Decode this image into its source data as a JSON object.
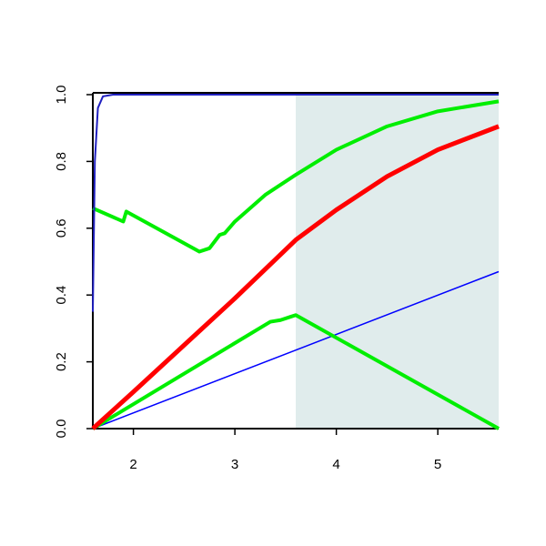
{
  "chart_data": {
    "type": "line",
    "xlim": [
      1.6,
      5.6
    ],
    "ylim": [
      0,
      1
    ],
    "xticks": [
      2,
      3,
      4,
      5
    ],
    "yticks": [
      {
        "value": 0,
        "label": "0.0"
      },
      0.2,
      0.4,
      0.6,
      0.8,
      {
        "value": 1,
        "label": "1.0"
      }
    ],
    "shaded_range": [
      3.6,
      5.6
    ],
    "shade_color": "#e0ecec",
    "series": [
      {
        "color": "#0000ff",
        "width": 1.5,
        "x": [
          1.6,
          5.6
        ],
        "values": [
          0,
          0.47
        ]
      },
      {
        "color": "#00ee00",
        "width": 4,
        "x": [
          1.6,
          3.35,
          3.45,
          3.55,
          3.6,
          5.6
        ],
        "values": [
          0.0,
          0.32,
          0.325,
          0.335,
          0.34,
          0.0
        ]
      },
      {
        "color": "#ff0000",
        "width": 5,
        "x": [
          1.6,
          2.0,
          2.5,
          3.0,
          3.6,
          4.0,
          4.5,
          5.0,
          5.6
        ],
        "values": [
          0.0,
          0.11,
          0.25,
          0.39,
          0.565,
          0.655,
          0.755,
          0.835,
          0.905
        ]
      },
      {
        "color": "#00ee00",
        "width": 4,
        "x": [
          1.6,
          1.9,
          1.93,
          2.65,
          2.75,
          2.85,
          2.9,
          3.0,
          3.3,
          3.6,
          4.0,
          4.5,
          5.0,
          5.6
        ],
        "values": [
          0.66,
          0.62,
          0.65,
          0.53,
          0.54,
          0.58,
          0.585,
          0.62,
          0.7,
          0.76,
          0.835,
          0.905,
          0.95,
          0.98
        ]
      },
      {
        "color": "#2020c0",
        "width": 2,
        "x": [
          1.6,
          1.62,
          1.65,
          1.7,
          1.8,
          5.6
        ],
        "values": [
          0.35,
          0.8,
          0.96,
          0.995,
          1.0,
          1.0
        ]
      }
    ]
  }
}
